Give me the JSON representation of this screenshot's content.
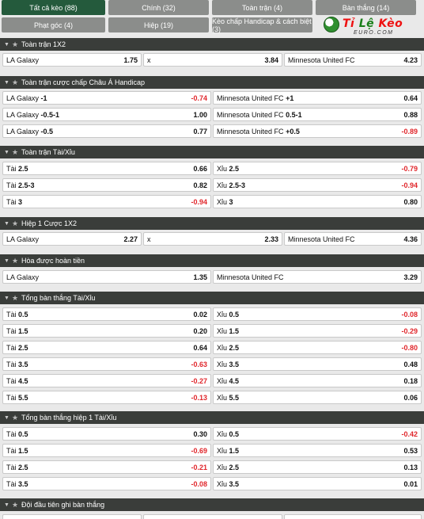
{
  "tabs": [
    {
      "label": "Tất cả kèo (88)",
      "active": true
    },
    {
      "label": "Chính (32)"
    },
    {
      "label": "Toàn trận (4)"
    },
    {
      "label": "Bàn thắng (14)"
    },
    {
      "label": "Phạt góc (4)"
    },
    {
      "label": "Hiệp (19)"
    },
    {
      "label": "Kèo chấp Handicap & cách biệt (3)"
    }
  ],
  "logo": {
    "ti": "Tỉ",
    "le": "Lệ",
    "keo": "Kèo",
    "sub": "EURO.COM"
  },
  "sections": [
    {
      "title": "Toàn trận 1X2"
    },
    {
      "title": "Toàn trận cược chấp Châu Á Handicap"
    },
    {
      "title": "Toàn trận Tài/Xỉu"
    },
    {
      "title": "Hiệp 1 Cược 1X2"
    },
    {
      "title": "Hòa được hoàn tiền"
    },
    {
      "title": "Tổng bàn thắng Tài/Xỉu"
    },
    {
      "title": "Tổng bàn thắng hiệp 1 Tài/Xỉu"
    },
    {
      "title": "Đội đầu tiên ghi bàn thắng"
    }
  ],
  "ft1x2": {
    "home": {
      "name": "LA Galaxy",
      "odds": "1.75"
    },
    "draw": {
      "name": "x",
      "odds": "3.84"
    },
    "away": {
      "name": "Minnesota United FC",
      "odds": "4.23"
    }
  },
  "handicap": [
    {
      "l_name": "LA Galaxy",
      "l_line": "-1",
      "l_odds": "-0.74",
      "r_name": "Minnesota United FC",
      "r_line": "+1",
      "r_odds": "0.64"
    },
    {
      "l_name": "LA Galaxy",
      "l_line": "-0.5-1",
      "l_odds": "1.00",
      "r_name": "Minnesota United FC",
      "r_line": "0.5-1",
      "r_odds": "0.88"
    },
    {
      "l_name": "LA Galaxy",
      "l_line": "-0.5",
      "l_odds": "0.77",
      "r_name": "Minnesota United FC",
      "r_line": "+0.5",
      "r_odds": "-0.89"
    }
  ],
  "ou": [
    {
      "l_name": "Tài",
      "l_line": "2.5",
      "l_odds": "0.66",
      "r_name": "Xỉu",
      "r_line": "2.5",
      "r_odds": "-0.79"
    },
    {
      "l_name": "Tài",
      "l_line": "2.5-3",
      "l_odds": "0.82",
      "r_name": "Xỉu",
      "r_line": "2.5-3",
      "r_odds": "-0.94"
    },
    {
      "l_name": "Tài",
      "l_line": "3",
      "l_odds": "-0.94",
      "r_name": "Xỉu",
      "r_line": "3",
      "r_odds": "0.80"
    }
  ],
  "h1x2": {
    "home": {
      "name": "LA Galaxy",
      "odds": "2.27"
    },
    "draw": {
      "name": "x",
      "odds": "2.33"
    },
    "away": {
      "name": "Minnesota United FC",
      "odds": "4.36"
    }
  },
  "dnb": {
    "home": {
      "name": "LA Galaxy",
      "odds": "1.35"
    },
    "away": {
      "name": "Minnesota United FC",
      "odds": "3.29"
    }
  },
  "totals": [
    {
      "l_name": "Tài",
      "l_line": "0.5",
      "l_odds": "0.02",
      "r_name": "Xỉu",
      "r_line": "0.5",
      "r_odds": "-0.08"
    },
    {
      "l_name": "Tài",
      "l_line": "1.5",
      "l_odds": "0.20",
      "r_name": "Xỉu",
      "r_line": "1.5",
      "r_odds": "-0.29"
    },
    {
      "l_name": "Tài",
      "l_line": "2.5",
      "l_odds": "0.64",
      "r_name": "Xỉu",
      "r_line": "2.5",
      "r_odds": "-0.80"
    },
    {
      "l_name": "Tài",
      "l_line": "3.5",
      "l_odds": "-0.63",
      "r_name": "Xỉu",
      "r_line": "3.5",
      "r_odds": "0.48"
    },
    {
      "l_name": "Tài",
      "l_line": "4.5",
      "l_odds": "-0.27",
      "r_name": "Xỉu",
      "r_line": "4.5",
      "r_odds": "0.18"
    },
    {
      "l_name": "Tài",
      "l_line": "5.5",
      "l_odds": "-0.13",
      "r_name": "Xỉu",
      "r_line": "5.5",
      "r_odds": "0.06"
    }
  ],
  "h1totals": [
    {
      "l_name": "Tài",
      "l_line": "0.5",
      "l_odds": "0.30",
      "r_name": "Xỉu",
      "r_line": "0.5",
      "r_odds": "-0.42"
    },
    {
      "l_name": "Tài",
      "l_line": "1.5",
      "l_odds": "-0.69",
      "r_name": "Xỉu",
      "r_line": "1.5",
      "r_odds": "0.53"
    },
    {
      "l_name": "Tài",
      "l_line": "2.5",
      "l_odds": "-0.21",
      "r_name": "Xỉu",
      "r_line": "2.5",
      "r_odds": "0.13"
    },
    {
      "l_name": "Tài",
      "l_line": "3.5",
      "l_odds": "-0.08",
      "r_name": "Xỉu",
      "r_line": "3.5",
      "r_odds": "0.01"
    }
  ]
}
